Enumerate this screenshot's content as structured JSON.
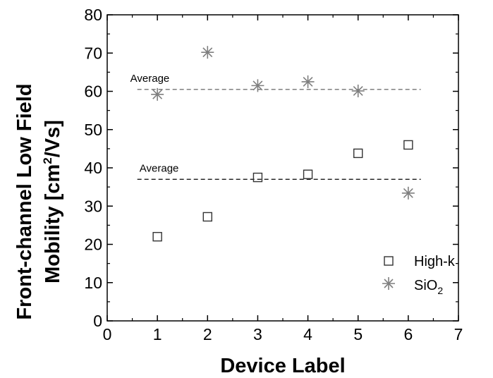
{
  "chart_data": {
    "type": "scatter",
    "xlabel": "Device Label",
    "ylabel_line1": "Front-channel Low Field",
    "ylabel_line2": "Mobility [cm",
    "ylabel_sup": "2",
    "ylabel_end": "/Vs]",
    "xlim": [
      0,
      7
    ],
    "ylim": [
      0,
      80
    ],
    "xticks": [
      0,
      1,
      2,
      3,
      4,
      5,
      6,
      7
    ],
    "yticks": [
      0,
      10,
      20,
      30,
      40,
      50,
      60,
      70,
      80
    ],
    "grid": false,
    "legend_position": "bottom-right",
    "series": [
      {
        "name": "High-k",
        "marker": "square",
        "color": "#333333",
        "x": [
          1,
          2,
          3,
          4,
          5,
          6
        ],
        "y": [
          22,
          27.2,
          37.5,
          38.3,
          43.8,
          46
        ]
      },
      {
        "name": "SiO",
        "name_sub": "2",
        "marker": "asterisk",
        "color": "#7f7f7f",
        "x": [
          1,
          2,
          3,
          4,
          5,
          6
        ],
        "y": [
          59.2,
          70.2,
          61.5,
          62.5,
          60.1,
          33.4
        ]
      }
    ],
    "reference_lines": [
      {
        "label": "Average",
        "y": 60.5,
        "x_range": [
          0.6,
          6.25
        ],
        "color": "#555555",
        "label_x": 0.6
      },
      {
        "label": "Average",
        "y": 37,
        "x_range": [
          0.6,
          6.25
        ],
        "color": "#000000",
        "label_x": 0.7
      }
    ]
  }
}
